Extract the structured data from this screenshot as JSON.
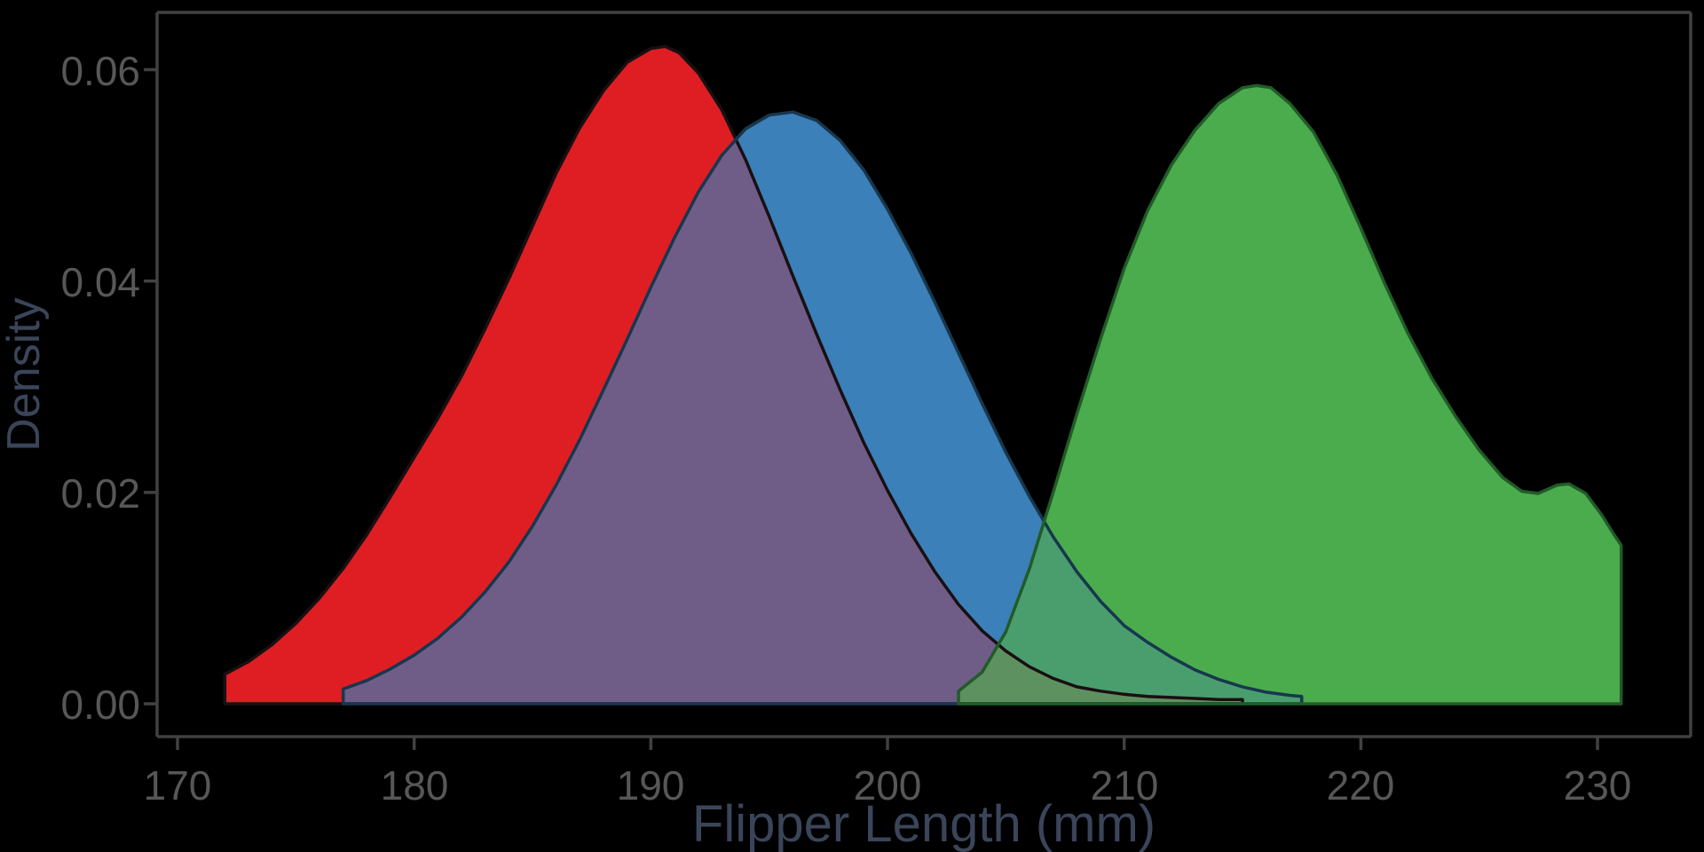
{
  "figure": {
    "background": "#000000",
    "spine_color": "#414141",
    "tick_mark_color": "#414141",
    "tick_label_color": "#575757",
    "axis_label_color": "#3A455A"
  },
  "axes": {
    "x_label": "Flipper Length (mm)",
    "y_label": "Density",
    "x_tick_labels": [
      "170",
      "180",
      "190",
      "200",
      "210",
      "220",
      "230"
    ],
    "y_tick_labels": [
      "0.00",
      "0.02",
      "0.04",
      "0.06"
    ],
    "x_tick_values": [
      170,
      180,
      190,
      200,
      210,
      220,
      230
    ],
    "y_tick_values": [
      0.0,
      0.02,
      0.04,
      0.06
    ]
  },
  "chart_data": {
    "type": "area",
    "subtype": "kde-density",
    "title": "",
    "xlabel": "Flipper Length (mm)",
    "ylabel": "Density",
    "xlim": [
      169.1,
      233.9
    ],
    "ylim": [
      -0.0031,
      0.0654
    ],
    "grid": false,
    "legend": "none",
    "series": [
      {
        "name": "red-density",
        "fill_color": "#DF1E24",
        "stroke_color": "#1A0F12",
        "peak_x": 190.6,
        "peak_density": 0.0622,
        "points": [
          [
            172,
            0.0028
          ],
          [
            173,
            0.004
          ],
          [
            174,
            0.0056
          ],
          [
            175,
            0.0076
          ],
          [
            176,
            0.01
          ],
          [
            177,
            0.0128
          ],
          [
            178,
            0.016
          ],
          [
            179,
            0.0196
          ],
          [
            180,
            0.0233
          ],
          [
            181,
            0.027
          ],
          [
            182,
            0.031
          ],
          [
            183,
            0.0355
          ],
          [
            184,
            0.0402
          ],
          [
            185,
            0.0452
          ],
          [
            186,
            0.0502
          ],
          [
            187,
            0.0545
          ],
          [
            188,
            0.058
          ],
          [
            189,
            0.0607
          ],
          [
            190,
            0.062
          ],
          [
            190.6,
            0.0622
          ],
          [
            191.2,
            0.0616
          ],
          [
            192,
            0.0597
          ],
          [
            193,
            0.0562
          ],
          [
            194,
            0.0515
          ],
          [
            195,
            0.0461
          ],
          [
            196,
            0.0405
          ],
          [
            197,
            0.035
          ],
          [
            198,
            0.0297
          ],
          [
            199,
            0.0247
          ],
          [
            200,
            0.0202
          ],
          [
            201,
            0.0161
          ],
          [
            202,
            0.0125
          ],
          [
            203,
            0.0094
          ],
          [
            204,
            0.0069
          ],
          [
            205,
            0.005
          ],
          [
            206,
            0.0035
          ],
          [
            207,
            0.0024
          ],
          [
            208,
            0.0016
          ],
          [
            209,
            0.0012
          ],
          [
            210,
            0.0009
          ],
          [
            211,
            0.0007
          ],
          [
            212,
            0.0006
          ],
          [
            213,
            0.0005
          ],
          [
            214,
            0.0004
          ],
          [
            215,
            0.0004
          ]
        ]
      },
      {
        "name": "blue-density",
        "fill_color": "#3B80B8",
        "stroke_color": "#17374E",
        "peak_x": 196.0,
        "peak_density": 0.056,
        "points": [
          [
            177,
            0.0014
          ],
          [
            178,
            0.0022
          ],
          [
            179,
            0.0033
          ],
          [
            180,
            0.0046
          ],
          [
            181,
            0.0062
          ],
          [
            182,
            0.0082
          ],
          [
            183,
            0.0106
          ],
          [
            184,
            0.0134
          ],
          [
            185,
            0.0168
          ],
          [
            186,
            0.0207
          ],
          [
            187,
            0.025
          ],
          [
            188,
            0.0297
          ],
          [
            189,
            0.0345
          ],
          [
            190,
            0.0394
          ],
          [
            191,
            0.0441
          ],
          [
            192,
            0.0484
          ],
          [
            193,
            0.0519
          ],
          [
            194,
            0.0544
          ],
          [
            195,
            0.0557
          ],
          [
            196,
            0.056
          ],
          [
            197,
            0.0552
          ],
          [
            198,
            0.0533
          ],
          [
            199,
            0.0505
          ],
          [
            200,
            0.0468
          ],
          [
            201,
            0.0426
          ],
          [
            202,
            0.038
          ],
          [
            203,
            0.0332
          ],
          [
            204,
            0.0284
          ],
          [
            205,
            0.0238
          ],
          [
            206,
            0.0196
          ],
          [
            207,
            0.0158
          ],
          [
            208,
            0.0125
          ],
          [
            209,
            0.0097
          ],
          [
            210,
            0.0074
          ],
          [
            211,
            0.0058
          ],
          [
            212,
            0.0044
          ],
          [
            213,
            0.0032
          ],
          [
            214,
            0.0023
          ],
          [
            215,
            0.0016
          ],
          [
            216,
            0.0011
          ],
          [
            217,
            0.0008
          ],
          [
            217.5,
            0.0007
          ]
        ]
      },
      {
        "name": "green-density",
        "fill_color": "#4BAC4E",
        "stroke_color": "#215B28",
        "peak_x": 215.6,
        "peak_density": 0.0585,
        "points": [
          [
            203,
            0.0012
          ],
          [
            204,
            0.003
          ],
          [
            205,
            0.0068
          ],
          [
            206,
            0.0128
          ],
          [
            207,
            0.02
          ],
          [
            208,
            0.0274
          ],
          [
            209,
            0.0345
          ],
          [
            210,
            0.0412
          ],
          [
            211,
            0.0467
          ],
          [
            212,
            0.051
          ],
          [
            213,
            0.0543
          ],
          [
            214,
            0.0568
          ],
          [
            215,
            0.0583
          ],
          [
            215.6,
            0.0585
          ],
          [
            216.2,
            0.0583
          ],
          [
            217,
            0.0568
          ],
          [
            218,
            0.0541
          ],
          [
            219,
            0.05
          ],
          [
            220,
            0.045
          ],
          [
            221,
            0.0398
          ],
          [
            222,
            0.035
          ],
          [
            223,
            0.0308
          ],
          [
            224,
            0.0272
          ],
          [
            225,
            0.024
          ],
          [
            226,
            0.0214
          ],
          [
            226.8,
            0.0201
          ],
          [
            227.5,
            0.0199
          ],
          [
            228.3,
            0.0207
          ],
          [
            228.8,
            0.0208
          ],
          [
            229.5,
            0.0199
          ],
          [
            230.2,
            0.0178
          ],
          [
            230.7,
            0.016
          ],
          [
            231,
            0.015
          ]
        ]
      }
    ],
    "overlap_colors": {
      "red_blue": "#6F5D88",
      "green_blue": "#4A9E6E",
      "green_red": "#5E9160"
    }
  }
}
